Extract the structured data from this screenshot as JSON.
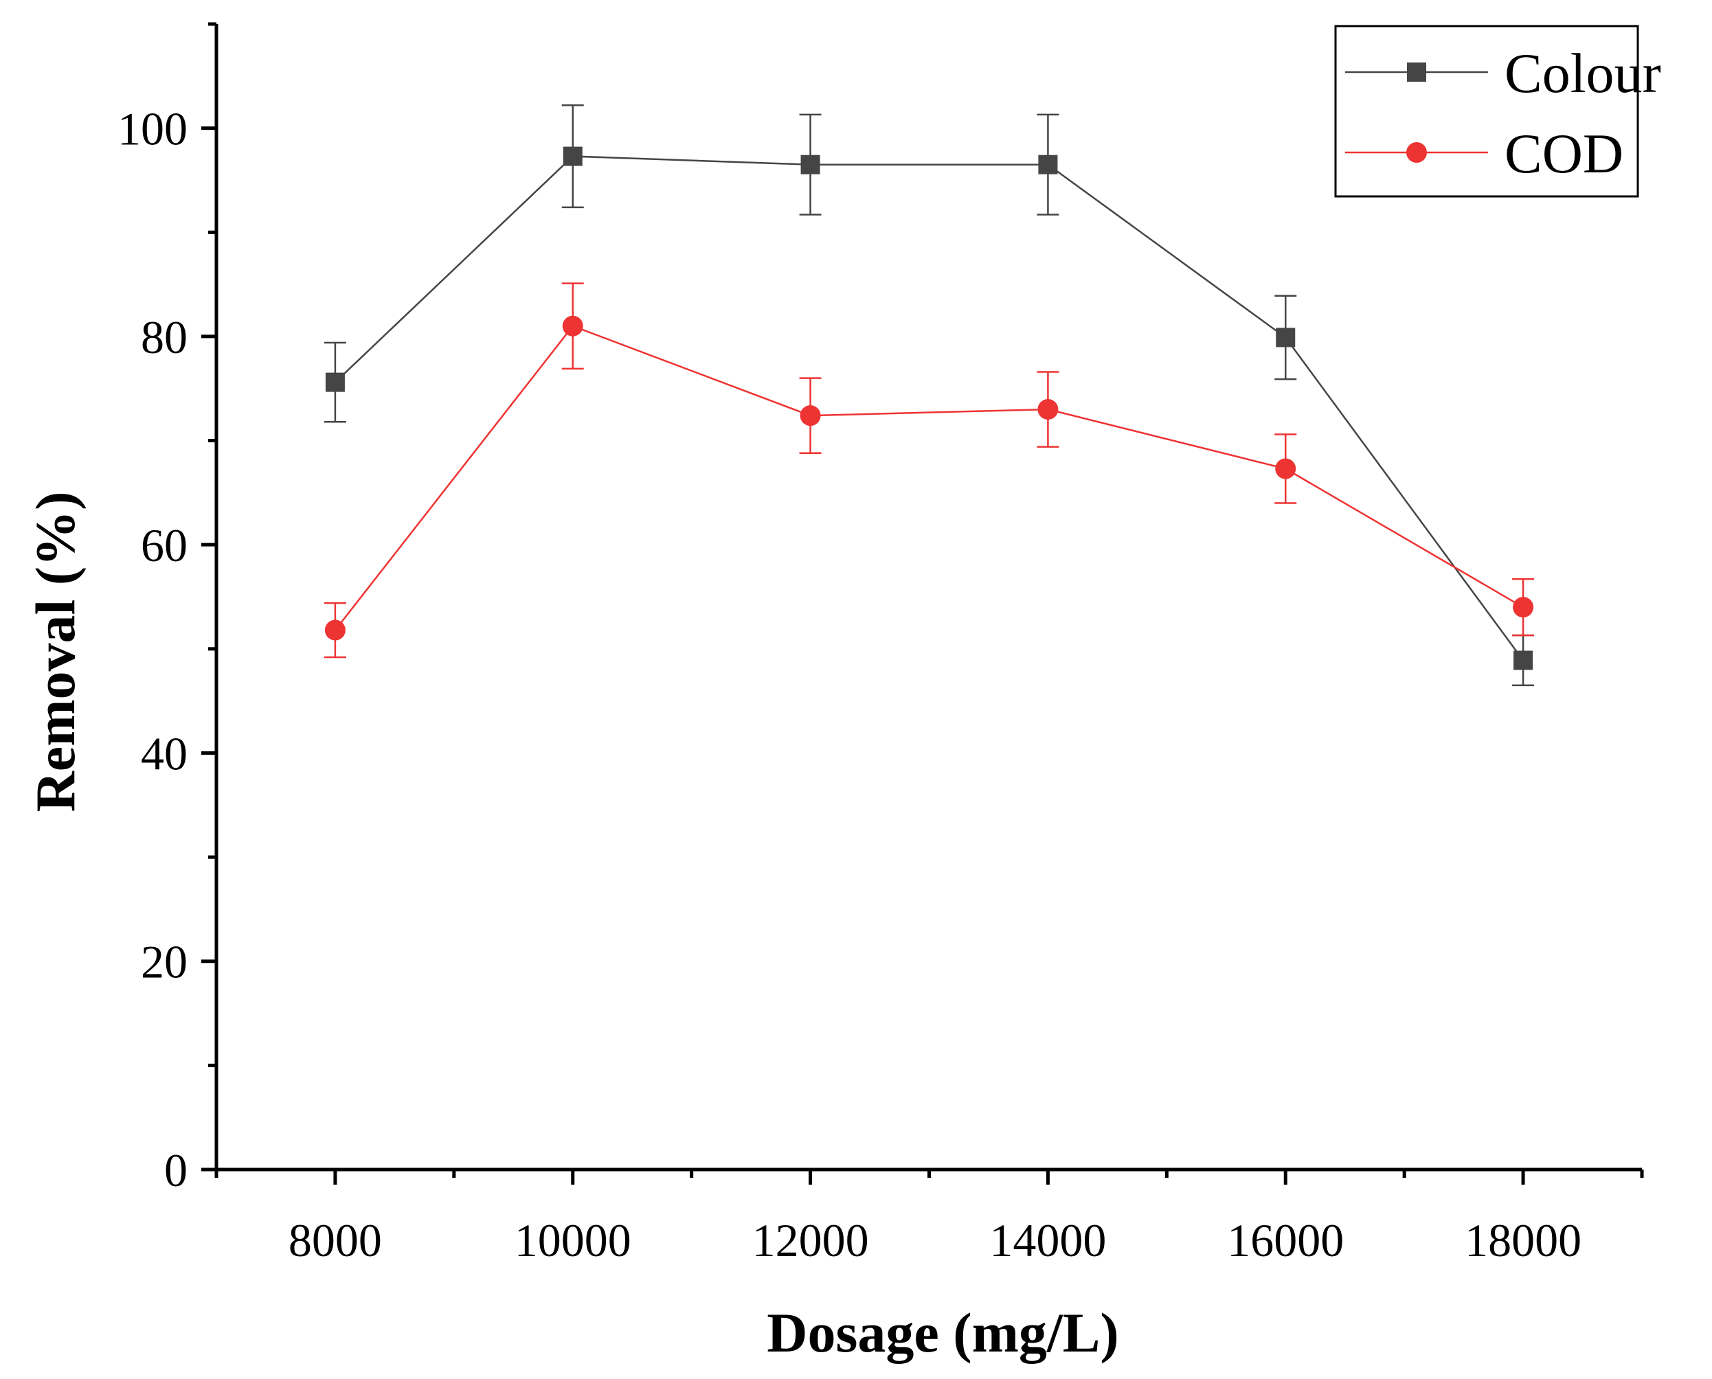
{
  "chart_data": {
    "type": "line",
    "title": "",
    "xlabel": "Dosage (mg/L)",
    "ylabel": "Removal (%)",
    "xlim": [
      7000,
      19000
    ],
    "ylim": [
      0,
      110
    ],
    "x": [
      8000,
      10000,
      12000,
      14000,
      16000,
      18000
    ],
    "xticks": [
      8000,
      10000,
      12000,
      14000,
      16000,
      18000
    ],
    "xtick_labels": [
      "8000",
      "10000",
      "12000",
      "14000",
      "16000",
      "18000"
    ],
    "yticks": [
      0,
      20,
      40,
      60,
      80,
      100
    ],
    "ytick_labels": [
      "0",
      "20",
      "40",
      "60",
      "80",
      "100"
    ],
    "grid": false,
    "legend_position": "top-right",
    "series": [
      {
        "name": "Colour",
        "marker": "square",
        "color": "#454545",
        "values": [
          75.6,
          97.3,
          96.5,
          96.5,
          79.9,
          48.9
        ],
        "errors": [
          3.8,
          4.9,
          4.8,
          4.8,
          4.0,
          2.4
        ]
      },
      {
        "name": "COD",
        "marker": "circle",
        "color": "#ee3333",
        "values": [
          51.8,
          81.0,
          72.4,
          73.0,
          67.3,
          54.0
        ],
        "errors": [
          2.6,
          4.1,
          3.6,
          3.6,
          3.3,
          2.7
        ]
      }
    ]
  }
}
